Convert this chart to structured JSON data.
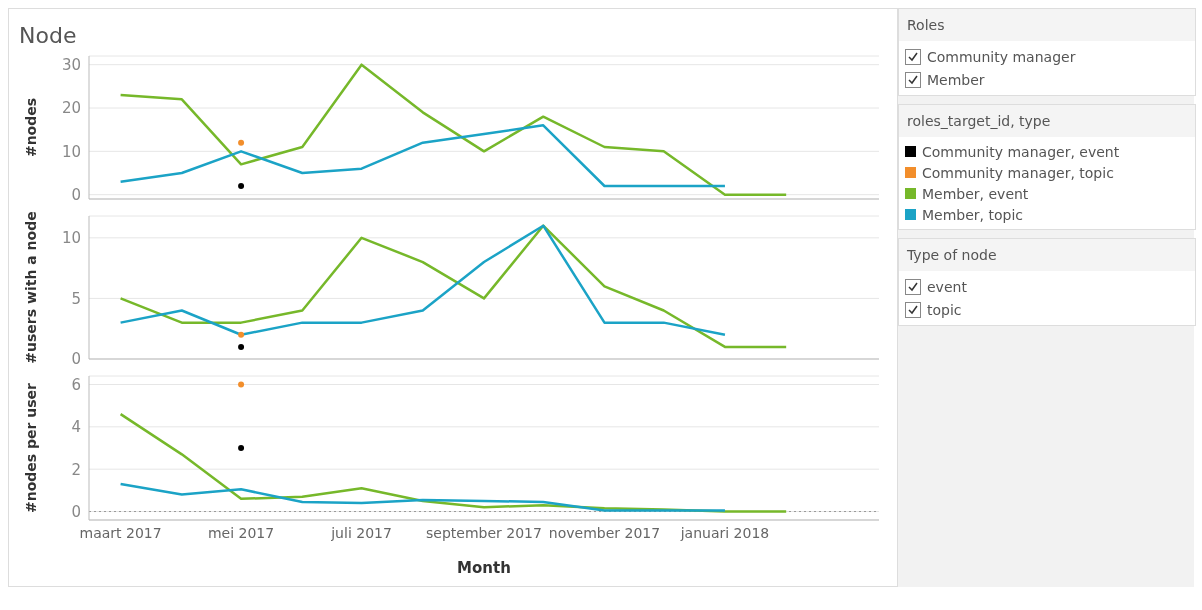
{
  "chart_data": [
    {
      "type": "line",
      "title": "Node",
      "ylabel": "#nodes",
      "x": [
        "2017-03",
        "2017-04",
        "2017-05",
        "2017-06",
        "2017-07",
        "2017-08",
        "2017-09",
        "2017-10",
        "2017-11",
        "2017-12",
        "2018-01",
        "2018-02"
      ],
      "xlim": [
        "2017-02-13",
        "2018-03-20"
      ],
      "ylim": [
        -1,
        32
      ],
      "yticks": [
        0,
        10,
        20,
        30
      ],
      "grid": "y",
      "tick_labels": "y",
      "legend": "right",
      "legend_title": "roles_target_id, type",
      "series": [
        {
          "name": "Community manager, event",
          "color": "#000000",
          "type": "scatter",
          "marker": "circle",
          "x": [
            "2017-05"
          ],
          "values": [
            2
          ]
        },
        {
          "name": "Community manager, topic",
          "color": "#f28e2b",
          "type": "scatter",
          "marker": "circle",
          "x": [
            "2017-05"
          ],
          "values": [
            12
          ]
        },
        {
          "name": "Member, event",
          "color": "#76b82a",
          "values": [
            23,
            22,
            7,
            11,
            30,
            19,
            10,
            18,
            11,
            10,
            0,
            0
          ]
        },
        {
          "name": "Member, topic",
          "color": "#1ba3c6",
          "values": [
            3,
            5,
            10,
            5,
            6,
            12,
            14,
            16,
            2,
            2,
            2,
            null
          ]
        }
      ]
    },
    {
      "type": "line",
      "ylabel": "#users with a node",
      "x": [
        "2017-03",
        "2017-04",
        "2017-05",
        "2017-06",
        "2017-07",
        "2017-08",
        "2017-09",
        "2017-10",
        "2017-11",
        "2017-12",
        "2018-01",
        "2018-02"
      ],
      "xlim": [
        "2017-02-13",
        "2018-03-20"
      ],
      "ylim": [
        0,
        11.8
      ],
      "yticks": [
        0,
        5,
        10
      ],
      "grid": "y",
      "tick_labels": "y",
      "series": [
        {
          "color": "#000000",
          "type": "scatter",
          "marker": "circle",
          "x": [
            "2017-05"
          ],
          "values": [
            1
          ]
        },
        {
          "color": "#f28e2b",
          "type": "scatter",
          "marker": "circle",
          "x": [
            "2017-05"
          ],
          "values": [
            2
          ]
        },
        {
          "color": "#76b82a",
          "values": [
            5,
            3,
            3,
            4,
            10,
            8,
            5,
            11,
            6,
            4,
            1,
            1
          ]
        },
        {
          "color": "#1ba3c6",
          "values": [
            3,
            4,
            2,
            3,
            3,
            4,
            8,
            11,
            3,
            3,
            2,
            null
          ]
        }
      ]
    },
    {
      "type": "line",
      "ylabel": "#nodes per user",
      "xlabel": "Month",
      "x": [
        "2017-03",
        "2017-04",
        "2017-05",
        "2017-06",
        "2017-07",
        "2017-08",
        "2017-09",
        "2017-10",
        "2017-11",
        "2017-12",
        "2018-01",
        "2018-02"
      ],
      "xlim": [
        "2017-02-13",
        "2018-03-20"
      ],
      "xticks": [
        {
          "value": "2017-03",
          "label": "maart 2017"
        },
        {
          "value": "2017-05",
          "label": "mei 2017"
        },
        {
          "value": "2017-07",
          "label": "juli 2017"
        },
        {
          "value": "2017-09",
          "label": "september 2017"
        },
        {
          "value": "2017-11",
          "label": "november 2017"
        },
        {
          "value": "2018-01",
          "label": "januari 2018"
        }
      ],
      "ylim": [
        -0.4,
        6.4
      ],
      "yticks": [
        0,
        2,
        4,
        6
      ],
      "grid": "y",
      "ref_lines": [
        {
          "axis": "y",
          "value": 0,
          "color": "#999999",
          "line_style": "dotted"
        }
      ],
      "series": [
        {
          "color": "#000000",
          "type": "scatter",
          "marker": "circle",
          "x": [
            "2017-05"
          ],
          "values": [
            3
          ]
        },
        {
          "color": "#f28e2b",
          "type": "scatter",
          "marker": "circle",
          "x": [
            "2017-05"
          ],
          "values": [
            6
          ]
        },
        {
          "color": "#76b82a",
          "values": [
            4.6,
            2.7,
            0.6,
            0.7,
            1.1,
            0.5,
            0.2,
            0.3,
            0.15,
            0.1,
            0,
            0
          ]
        },
        {
          "color": "#1ba3c6",
          "values": [
            1.3,
            0.8,
            1.05,
            0.45,
            0.4,
            0.55,
            0.5,
            0.45,
            0.05,
            0.05,
            0.05,
            null
          ]
        }
      ]
    },
    {
      "type": "other",
      "title": "Roles",
      "annotations": [
        "Community manager",
        "Member"
      ]
    },
    {
      "type": "other",
      "title": "Type of node",
      "annotations": [
        "event",
        "topic"
      ]
    }
  ]
}
